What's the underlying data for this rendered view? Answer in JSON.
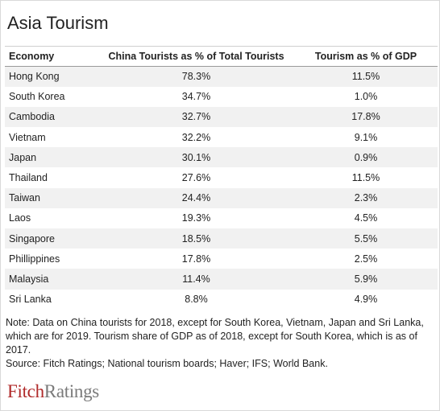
{
  "title": "Asia Tourism",
  "table": {
    "headers": [
      "Economy",
      "China Tourists as % of Total Tourists",
      "Tourism as % of GDP"
    ],
    "rows": [
      [
        "Hong Kong",
        "78.3%",
        "11.5%"
      ],
      [
        "South Korea",
        "34.7%",
        "1.0%"
      ],
      [
        "Cambodia",
        "32.7%",
        "17.8%"
      ],
      [
        "Vietnam",
        "32.2%",
        "9.1%"
      ],
      [
        "Japan",
        "30.1%",
        "0.9%"
      ],
      [
        "Thailand",
        "27.6%",
        "11.5%"
      ],
      [
        "Taiwan",
        "24.4%",
        "2.3%"
      ],
      [
        "Laos",
        "19.3%",
        "4.5%"
      ],
      [
        "Singapore",
        "18.5%",
        "5.5%"
      ],
      [
        "Phillippines",
        "17.8%",
        "2.5%"
      ],
      [
        "Malaysia",
        "11.4%",
        "5.9%"
      ],
      [
        "Sri Lanka",
        "8.8%",
        "4.9%"
      ]
    ]
  },
  "note": {
    "line1": "Note: Data on China tourists for 2018, except for South Korea, Vietnam, Japan and Sri Lanka,",
    "line2": "which are for 2019. Tourism share of GDP as of 2018, except for South Korea, which is as of 2017.",
    "line3": "Source: Fitch Ratings; National tourism boards; Haver; IFS; World Bank."
  },
  "logo": {
    "part1": "Fitch",
    "part2": "Ratings"
  },
  "colors": {
    "brand_red": "#b02a2a",
    "brand_grey": "#7a7a7a",
    "row_shade": "#f1f1f1"
  },
  "chart_data": {
    "type": "table",
    "title": "Asia Tourism",
    "columns": [
      "Economy",
      "China Tourists as % of Total Tourists",
      "Tourism as % of GDP"
    ],
    "rows": [
      [
        "Hong Kong",
        78.3,
        11.5
      ],
      [
        "South Korea",
        34.7,
        1.0
      ],
      [
        "Cambodia",
        32.7,
        17.8
      ],
      [
        "Vietnam",
        32.2,
        9.1
      ],
      [
        "Japan",
        30.1,
        0.9
      ],
      [
        "Thailand",
        27.6,
        11.5
      ],
      [
        "Taiwan",
        24.4,
        2.3
      ],
      [
        "Laos",
        19.3,
        4.5
      ],
      [
        "Singapore",
        18.5,
        5.5
      ],
      [
        "Phillippines",
        17.8,
        2.5
      ],
      [
        "Malaysia",
        11.4,
        5.9
      ],
      [
        "Sri Lanka",
        8.8,
        4.9
      ]
    ]
  }
}
